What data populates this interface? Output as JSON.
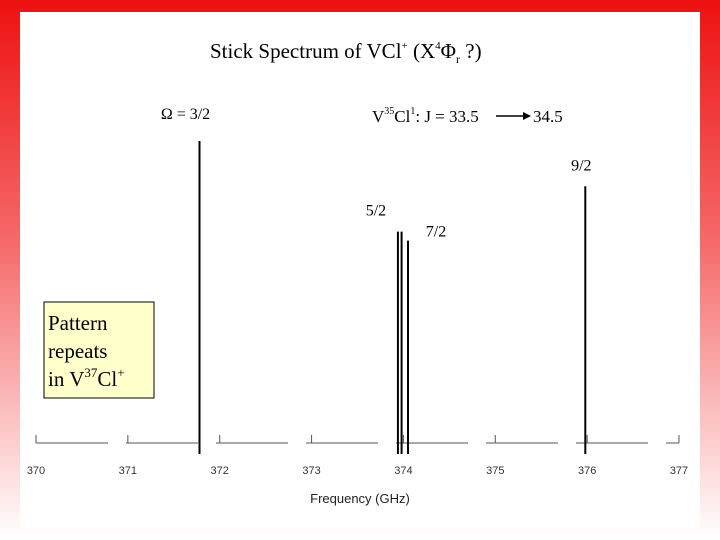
{
  "chart_data": {
    "type": "bar",
    "title_parts": {
      "a": "Stick Spectrum of VCl",
      "a_sup": "+",
      "b": " (X",
      "b_sup": "4",
      "c": "Φ",
      "c_sub": "r",
      "d": " ?)"
    },
    "annotation": {
      "prefix": "V",
      "sup1": "35",
      "mid": "Cl",
      "sup2": "1",
      "text": ": J = 33.5",
      "end": "34.5"
    },
    "xlabel": "Frequency (GHz)",
    "xlim": [
      370,
      377
    ],
    "ylim": [
      0,
      1
    ],
    "xticks": [
      "370",
      "371",
      "372",
      "373",
      "374",
      "375",
      "376",
      "377"
    ],
    "grid": false,
    "sticks": [
      {
        "x": 371.78,
        "y": 1.0,
        "label": "Ω = 3/2"
      },
      {
        "x": 373.94,
        "y": 0.7,
        "label": "5/2"
      },
      {
        "x": 373.98,
        "y": 0.7,
        "label": ""
      },
      {
        "x": 374.05,
        "y": 0.67,
        "label": "7/2"
      },
      {
        "x": 375.98,
        "y": 0.85,
        "label": "9/2"
      }
    ]
  },
  "note": {
    "line1": "Pattern",
    "line2": "repeats",
    "line3_prefix": "in V",
    "line3_sup1": "37",
    "line3_mid": "Cl",
    "line3_sup2": "+"
  },
  "colors": {
    "background_top": "#ee1111",
    "note_fill": "#ffffcc",
    "stick": "#000000",
    "axis": "#555555"
  }
}
